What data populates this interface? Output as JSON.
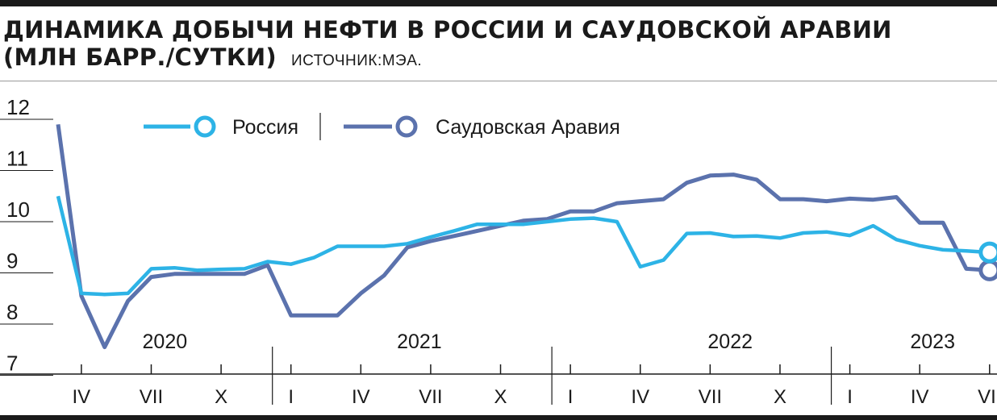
{
  "header": {
    "title_line1": "ДИНАМИКА ДОБЫЧИ НЕФТИ В РОССИИ И САУДОВСКОЙ АРАВИИ",
    "title_line2": "(МЛН БАРР./СУТКИ)",
    "source": "ИСТОЧНИК:МЭА."
  },
  "chart_data": {
    "type": "line",
    "title": "ДИНАМИКА ДОБЫЧИ НЕФТИ В РОССИИ И САУДОВСКОЙ АРАВИИ (МЛН БАРР./СУТКИ)",
    "xlabel": "",
    "ylabel": "",
    "ylim": [
      7,
      12
    ],
    "yticks": [
      12,
      11,
      10,
      9,
      8,
      7
    ],
    "grid": false,
    "legend_position": "top-center",
    "colors": {
      "russia": "#2db3e6",
      "saudi": "#5b72ad"
    },
    "x": [
      "2020-03",
      "2020-04",
      "2020-05",
      "2020-06",
      "2020-07",
      "2020-08",
      "2020-09",
      "2020-10",
      "2020-11",
      "2020-12",
      "2021-01",
      "2021-02",
      "2021-03",
      "2021-04",
      "2021-05",
      "2021-06",
      "2021-07",
      "2021-08",
      "2021-09",
      "2021-10",
      "2021-11",
      "2021-12",
      "2022-01",
      "2022-02",
      "2022-03",
      "2022-04",
      "2022-05",
      "2022-06",
      "2022-07",
      "2022-08",
      "2022-09",
      "2022-10",
      "2022-11",
      "2022-12",
      "2023-01",
      "2023-02",
      "2023-03",
      "2023-04",
      "2023-05",
      "2023-06",
      "2023-07"
    ],
    "series": [
      {
        "name": "Россия",
        "key": "russia",
        "values": [
          10.5,
          8.6,
          8.58,
          8.6,
          9.08,
          9.1,
          9.05,
          9.07,
          9.08,
          9.22,
          9.17,
          9.3,
          9.52,
          9.52,
          9.52,
          9.57,
          9.7,
          9.82,
          9.95,
          9.95,
          9.95,
          10.0,
          10.05,
          10.07,
          10.0,
          9.12,
          9.25,
          9.77,
          9.78,
          9.71,
          9.72,
          9.68,
          9.78,
          9.8,
          9.73,
          9.92,
          9.65,
          9.53,
          9.45,
          9.43,
          9.4
        ]
      },
      {
        "name": "Саудовская Аравия",
        "key": "saudi",
        "values": [
          11.9,
          8.55,
          7.55,
          8.45,
          8.92,
          8.98,
          8.98,
          8.98,
          8.98,
          9.15,
          8.17,
          8.17,
          8.17,
          8.6,
          8.95,
          9.5,
          9.62,
          9.72,
          9.82,
          9.92,
          10.02,
          10.05,
          10.2,
          10.2,
          10.36,
          10.4,
          10.44,
          10.76,
          10.9,
          10.92,
          10.82,
          10.44,
          10.44,
          10.4,
          10.45,
          10.43,
          10.48,
          9.98,
          9.98,
          9.08,
          9.05
        ]
      }
    ],
    "years": [
      "2020",
      "2021",
      "2022",
      "2023"
    ],
    "month_labels": [
      "IV",
      "VII",
      "X",
      "I",
      "IV",
      "VII",
      "X",
      "I",
      "IV",
      "VII",
      "X",
      "I",
      "IV",
      "VII"
    ]
  }
}
